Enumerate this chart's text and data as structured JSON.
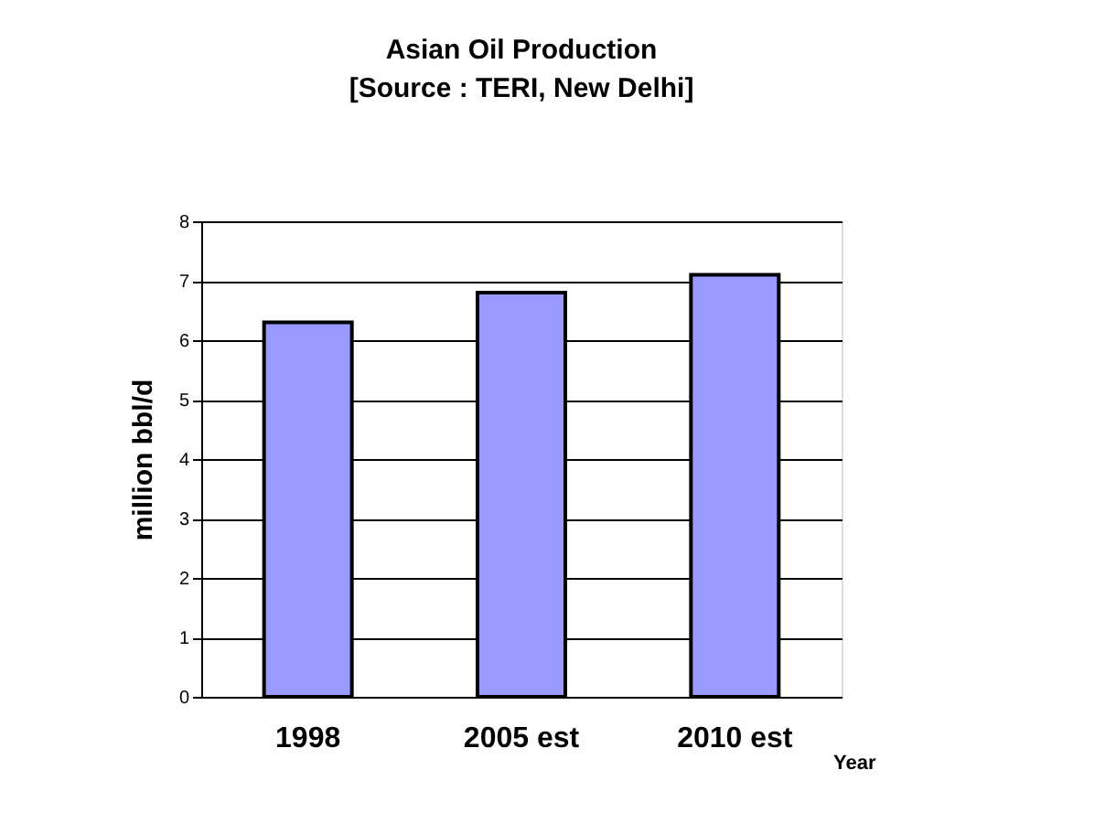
{
  "chart_data": {
    "type": "bar",
    "title": "Asian Oil Production",
    "subtitle": "[Source : TERI, New Delhi]",
    "xlabel": "Year",
    "ylabel": "million bbl/d",
    "categories": [
      "1998",
      "2005 est",
      "2010 est"
    ],
    "values": [
      6.3,
      6.8,
      7.1
    ],
    "color": "#9999ff",
    "ylim": [
      0,
      8
    ],
    "yticks": [
      0,
      1,
      2,
      3,
      4,
      5,
      6,
      7,
      8
    ],
    "grid": "y",
    "legend": false
  }
}
